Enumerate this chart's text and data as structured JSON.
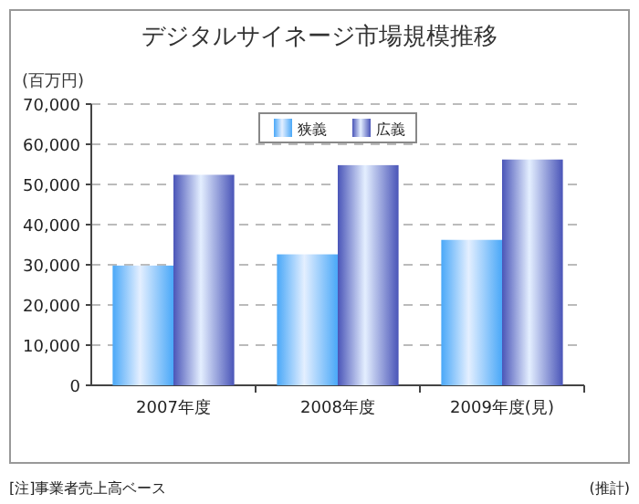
{
  "chart_data": {
    "type": "bar",
    "title": "デジタルサイネージ市場規模推移",
    "ylabel": "(百万円)",
    "categories": [
      "2007年度",
      "2008年度",
      "2009年度(見)"
    ],
    "series": [
      {
        "name": "狭義",
        "color": "#4aa8f8",
        "values": [
          29800,
          32600,
          36200
        ]
      },
      {
        "name": "広義",
        "color": "#4a55b8",
        "values": [
          52400,
          54800,
          56200
        ]
      }
    ],
    "ylim": [
      0,
      70000
    ],
    "yticks": [
      {
        "value": 0,
        "label": "0"
      },
      {
        "value": 10000,
        "label": "10,000"
      },
      {
        "value": 20000,
        "label": "20,000"
      },
      {
        "value": 30000,
        "label": "30,000"
      },
      {
        "value": 40000,
        "label": "40,000"
      },
      {
        "value": 50000,
        "label": "50,000"
      },
      {
        "value": 60000,
        "label": "60,000"
      },
      {
        "value": 70000,
        "label": "70,000"
      }
    ],
    "grid": "y",
    "legend": "top",
    "annotations": [
      "[注]事業者売上高ベース",
      "(推計)"
    ]
  }
}
